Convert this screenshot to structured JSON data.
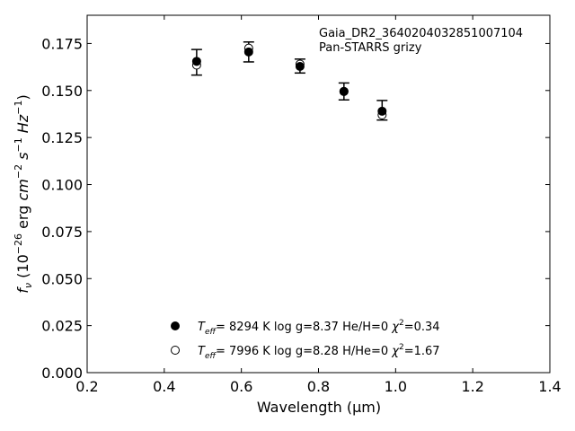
{
  "chart_data": {
    "type": "scatter",
    "xlabel": "Wavelength (μm)",
    "ylabel_parts": {
      "f": "f",
      "nu": "ν",
      "open": " (10",
      "exp1": "−26",
      "erg": " erg ",
      "cm": "cm",
      "exp2": "−2",
      "s": " s",
      "exp3": "−1",
      "hz": " Hz",
      "exp4": "−1",
      "close": ")"
    },
    "xlim": [
      0.2,
      1.4
    ],
    "ylim": [
      0.0,
      0.19
    ],
    "x_ticks": [
      "0.2",
      "0.4",
      "0.6",
      "0.8",
      "1.0",
      "1.2",
      "1.4"
    ],
    "x_tick_values": [
      0.2,
      0.4,
      0.6,
      0.8,
      1.0,
      1.2,
      1.4
    ],
    "y_ticks": [
      "0.000",
      "0.025",
      "0.050",
      "0.075",
      "0.100",
      "0.125",
      "0.150",
      "0.175"
    ],
    "y_tick_values": [
      0.0,
      0.025,
      0.05,
      0.075,
      0.1,
      0.125,
      0.15,
      0.175
    ],
    "annotation_lines": [
      "Gaia_DR2_3640204032851007104",
      "Pan-STARRS grizy"
    ],
    "observed": {
      "x": [
        0.484,
        0.619,
        0.752,
        0.866,
        0.965
      ],
      "y": [
        0.165,
        0.1705,
        0.163,
        0.1495,
        0.1395
      ],
      "yerr": [
        0.0068,
        0.0053,
        0.0037,
        0.0045,
        0.0052
      ]
    },
    "series": [
      {
        "marker": "filled",
        "teff_label": "T",
        "teff_sub": "eff",
        "text_main": "=  8294 K  log g=8.37  He/H=0  ",
        "chi_label": "χ",
        "chi_exp": "2",
        "chi_value": "=0.34",
        "x": [
          0.484,
          0.619,
          0.752,
          0.866,
          0.965
        ],
        "y": [
          0.1655,
          0.1705,
          0.1628,
          0.1495,
          0.139
        ]
      },
      {
        "marker": "open",
        "teff_label": "T",
        "teff_sub": "eff",
        "text_main": "=  7996 K  log g=8.28  H/He=0  ",
        "chi_label": "χ",
        "chi_exp": "2",
        "chi_value": "=1.67",
        "x": [
          0.484,
          0.619,
          0.752,
          0.866,
          0.965
        ],
        "y": [
          0.1635,
          0.1725,
          0.164,
          0.1495,
          0.137
        ]
      }
    ],
    "grid": false,
    "legend_position": "lower-center"
  }
}
